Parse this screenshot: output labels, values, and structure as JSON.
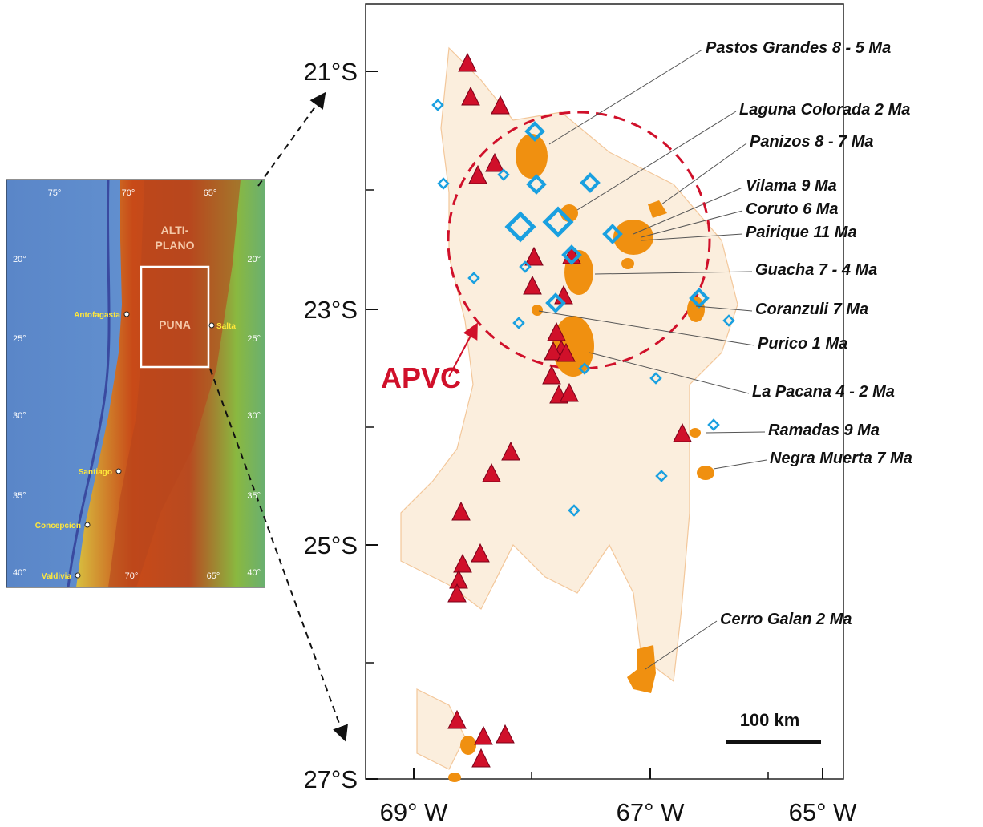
{
  "main_map": {
    "y_labels": [
      "21°S",
      "23°S",
      "25°S",
      "27°S"
    ],
    "x_labels": [
      "69° W",
      "67° W",
      "65° W"
    ],
    "calderas": [
      "Pastos Grandes  8 - 5 Ma",
      "Laguna Colorada  2 Ma",
      "Panizos 8 - 7 Ma",
      "Vilama  9 Ma",
      "Coruto  6 Ma",
      "Pairique  11 Ma",
      "Guacha 7 - 4 Ma",
      "Coranzuli  7 Ma",
      "Purico  1 Ma",
      "La Pacana  4 - 2 Ma",
      "Ramadas  9 Ma",
      "Negra Muerta  7 Ma",
      "Cerro Galan  2 Ma"
    ],
    "complex_label": "APVC",
    "scale_bar": "100 km"
  },
  "inset_map": {
    "top_labels": [
      "75°",
      "70°",
      "65°"
    ],
    "bottom_labels": [
      "70°",
      "65°"
    ],
    "left_labels": [
      "20°",
      "25°",
      "30°",
      "35°",
      "40°"
    ],
    "right_labels": [
      "20°",
      "25°",
      "30°",
      "35°",
      "40°"
    ],
    "regions": [
      "ALTI-",
      "PLANO",
      "PUNA"
    ],
    "cities": [
      "Antofagasta",
      "Salta",
      "Santiago",
      "Concepcion",
      "Valdivia"
    ]
  }
}
